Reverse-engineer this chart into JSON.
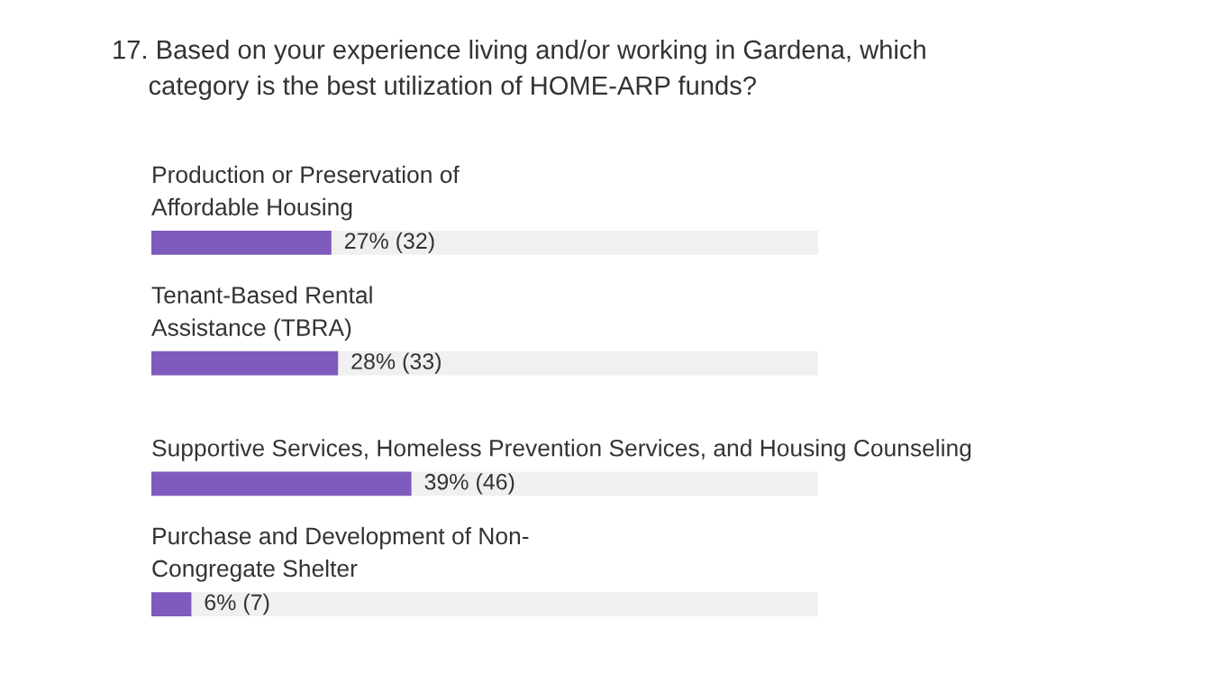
{
  "chart_data": {
    "type": "bar",
    "orientation": "horizontal",
    "title": "17. Based on your experience living and/or working in Gardena, which\n     category is the best utilization of HOME-ARP funds?",
    "categories": [
      "Production or Preservation of\nAffordable Housing",
      "Tenant-Based Rental\nAssistance (TBRA)",
      "Supportive Services, Homeless Prevention Services, and Housing Counseling",
      "Purchase and Development of Non-\nCongregate Shelter"
    ],
    "values": [
      27,
      28,
      39,
      6
    ],
    "value_labels": [
      "27% (32)",
      "28% (33)",
      "39% (46)",
      "6% (7)"
    ],
    "color": "#7e5bbd"
  }
}
